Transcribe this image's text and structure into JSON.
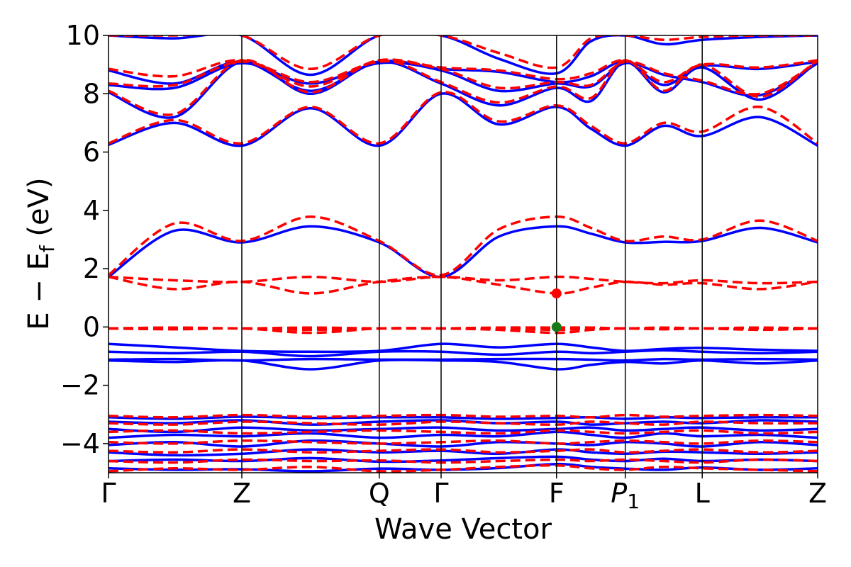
{
  "chart_data": {
    "type": "line",
    "title": "",
    "xlabel": "Wave Vector",
    "ylabel": "E − E_f (eV)",
    "ylabel_main": "E − E",
    "ylabel_sub": "f",
    "ylabel_unit": " (eV)",
    "ylim": [
      -5,
      10
    ],
    "xlim": [
      0,
      5.16
    ],
    "grid": false,
    "legend": "none",
    "yticks": [
      {
        "value": -4,
        "label": "−4"
      },
      {
        "value": -2,
        "label": "−2"
      },
      {
        "value": 0,
        "label": "0"
      },
      {
        "value": 2,
        "label": "2"
      },
      {
        "value": 4,
        "label": "4"
      },
      {
        "value": 6,
        "label": "6"
      },
      {
        "value": 8,
        "label": "8"
      },
      {
        "value": 10,
        "label": "10"
      }
    ],
    "kpoints": [
      {
        "label": "Γ",
        "sub": "",
        "x": 0
      },
      {
        "label": "Z",
        "sub": "",
        "x": 0.97
      },
      {
        "label": "Q",
        "sub": "",
        "x": 1.97
      },
      {
        "label": "Γ",
        "sub": "",
        "x": 2.42
      },
      {
        "label": "F",
        "sub": "",
        "x": 3.26
      },
      {
        "label": "P",
        "sub": "1",
        "x": 3.76
      },
      {
        "label": "L",
        "sub": "",
        "x": 4.32
      },
      {
        "label": "Z",
        "sub": "",
        "x": 5.16
      }
    ],
    "colors": {
      "series1": "#0000ff",
      "series2": "#ff0000",
      "vline": "#000000",
      "green_marker": "#1a7a1a"
    },
    "band_x": [
      0,
      0.48,
      0.97,
      1.47,
      1.97,
      2.42,
      2.84,
      3.26,
      3.51,
      3.76,
      4.04,
      4.32,
      4.74,
      5.16
    ],
    "series": [
      {
        "style": "solid",
        "color": "#0000ff",
        "bands": [
          [
            -4.85,
            -4.9,
            -4.88,
            -4.95,
            -4.86,
            -4.9,
            -4.84,
            -4.7,
            -4.8,
            -4.86,
            -4.9,
            -4.82,
            -4.9,
            -4.85
          ],
          [
            -4.6,
            -4.55,
            -4.6,
            -4.5,
            -4.62,
            -4.58,
            -4.5,
            -4.45,
            -4.55,
            -4.6,
            -4.52,
            -4.6,
            -4.55,
            -4.6
          ],
          [
            -4.3,
            -4.4,
            -4.35,
            -4.2,
            -4.3,
            -4.25,
            -4.35,
            -4.2,
            -4.3,
            -4.35,
            -4.28,
            -4.3,
            -4.35,
            -4.3
          ],
          [
            -4.05,
            -3.95,
            -4.1,
            -3.9,
            -4.0,
            -4.1,
            -3.95,
            -4.0,
            -4.05,
            -3.95,
            -4.0,
            -4.1,
            -3.95,
            -4.05
          ],
          [
            -3.8,
            -3.7,
            -3.75,
            -3.65,
            -3.8,
            -3.7,
            -3.75,
            -3.6,
            -3.7,
            -3.8,
            -3.65,
            -3.75,
            -3.7,
            -3.8
          ],
          [
            -3.5,
            -3.6,
            -3.45,
            -3.55,
            -3.5,
            -3.45,
            -3.55,
            -3.5,
            -3.45,
            -3.55,
            -3.5,
            -3.45,
            -3.55,
            -3.5
          ],
          [
            -3.25,
            -3.3,
            -3.2,
            -3.35,
            -3.25,
            -3.2,
            -3.3,
            -3.25,
            -3.35,
            -3.3,
            -3.25,
            -3.3,
            -3.2,
            -3.25
          ],
          [
            -3.1,
            -3.15,
            -3.08,
            -3.12,
            -3.1,
            -3.1,
            -3.15,
            -3.12,
            -3.1,
            -3.15,
            -3.1,
            -3.12,
            -3.1,
            -3.1
          ],
          [
            -1.15,
            -1.2,
            -1.15,
            -1.45,
            -1.15,
            -1.15,
            -1.2,
            -1.45,
            -1.3,
            -1.2,
            -1.25,
            -1.15,
            -1.25,
            -1.15
          ],
          [
            -1.12,
            -1.1,
            -1.15,
            -1.1,
            -1.12,
            -1.12,
            -1.1,
            -1.1,
            -1.12,
            -1.15,
            -1.1,
            -1.12,
            -1.1,
            -1.12
          ],
          [
            -0.85,
            -0.9,
            -0.85,
            -1.0,
            -0.85,
            -0.85,
            -0.95,
            -0.85,
            -0.9,
            -0.85,
            -0.8,
            -0.85,
            -0.9,
            -0.85
          ],
          [
            -0.58,
            -0.7,
            -0.82,
            -0.85,
            -0.82,
            -0.58,
            -0.7,
            -0.58,
            -0.7,
            -0.82,
            -0.75,
            -0.72,
            -0.78,
            -0.82
          ],
          [
            1.72,
            3.3,
            2.9,
            3.45,
            2.9,
            1.72,
            3.1,
            3.45,
            3.2,
            2.9,
            2.92,
            2.95,
            3.4,
            2.9
          ],
          [
            6.25,
            7.0,
            6.22,
            7.5,
            6.22,
            8.0,
            6.95,
            7.55,
            6.8,
            6.22,
            6.9,
            6.55,
            7.2,
            6.22
          ],
          [
            8.05,
            7.2,
            9.1,
            8.0,
            9.1,
            8.35,
            7.6,
            8.2,
            7.75,
            9.1,
            8.05,
            8.9,
            7.8,
            9.1
          ],
          [
            8.3,
            8.2,
            9.05,
            8.35,
            9.05,
            8.8,
            8.1,
            8.35,
            8.25,
            9.05,
            8.65,
            8.4,
            7.95,
            9.05
          ],
          [
            8.8,
            8.35,
            9.1,
            8.1,
            9.1,
            8.85,
            8.75,
            8.4,
            8.6,
            9.1,
            8.3,
            8.95,
            8.85,
            9.1
          ],
          [
            10.0,
            9.9,
            10.0,
            8.65,
            10.0,
            10.0,
            9.2,
            8.7,
            9.8,
            10.0,
            9.7,
            9.85,
            9.95,
            10.0
          ]
        ]
      },
      {
        "style": "dashed",
        "color": "#ff0000",
        "bands": [
          [
            -4.95,
            -4.85,
            -4.9,
            -4.8,
            -4.95,
            -4.9,
            -4.8,
            -4.75,
            -4.85,
            -4.9,
            -4.8,
            -4.85,
            -4.9,
            -4.95
          ],
          [
            -4.6,
            -4.65,
            -4.55,
            -4.6,
            -4.58,
            -4.65,
            -4.6,
            -4.55,
            -4.6,
            -4.55,
            -4.6,
            -4.65,
            -4.55,
            -4.6
          ],
          [
            -4.25,
            -4.3,
            -4.2,
            -4.3,
            -4.25,
            -4.2,
            -4.3,
            -4.25,
            -4.2,
            -4.3,
            -4.25,
            -4.2,
            -4.3,
            -4.25
          ],
          [
            -3.95,
            -4.0,
            -3.9,
            -3.95,
            -4.0,
            -3.95,
            -3.9,
            -4.0,
            -3.95,
            -3.9,
            -3.95,
            -4.0,
            -3.9,
            -3.95
          ],
          [
            -3.6,
            -3.55,
            -3.65,
            -3.6,
            -3.55,
            -3.6,
            -3.65,
            -3.55,
            -3.6,
            -3.65,
            -3.6,
            -3.55,
            -3.65,
            -3.6
          ],
          [
            -3.3,
            -3.35,
            -3.25,
            -3.3,
            -3.35,
            -3.25,
            -3.3,
            -3.35,
            -3.25,
            -3.3,
            -3.35,
            -3.25,
            -3.3,
            -3.3
          ],
          [
            -3.05,
            -3.1,
            -3.02,
            -3.08,
            -3.05,
            -3.02,
            -3.08,
            -3.05,
            -3.1,
            -3.02,
            -3.08,
            -3.05,
            -3.02,
            -3.05
          ],
          [
            -0.05,
            -0.08,
            -0.05,
            -0.2,
            -0.05,
            -0.05,
            -0.1,
            -0.2,
            -0.1,
            -0.05,
            -0.08,
            -0.05,
            -0.1,
            -0.05
          ],
          [
            -0.05,
            -0.05,
            -0.05,
            -0.1,
            -0.05,
            -0.05,
            -0.05,
            -0.1,
            -0.05,
            -0.05,
            -0.05,
            -0.05,
            -0.05,
            -0.05
          ],
          [
            -0.05,
            -0.02,
            -0.05,
            -0.02,
            -0.05,
            -0.05,
            -0.02,
            -0.02,
            -0.02,
            -0.05,
            -0.02,
            -0.05,
            -0.02,
            -0.05
          ],
          [
            1.72,
            1.3,
            1.55,
            1.15,
            1.55,
            1.72,
            1.45,
            1.15,
            1.35,
            1.55,
            1.45,
            1.5,
            1.3,
            1.55
          ],
          [
            1.72,
            1.6,
            1.55,
            1.72,
            1.55,
            1.72,
            1.6,
            1.72,
            1.65,
            1.55,
            1.5,
            1.6,
            1.5,
            1.55
          ],
          [
            1.78,
            3.55,
            2.95,
            3.78,
            2.95,
            1.78,
            3.35,
            3.78,
            3.4,
            2.95,
            3.1,
            3.0,
            3.65,
            2.95
          ],
          [
            6.3,
            7.1,
            6.3,
            7.55,
            6.3,
            8.05,
            7.05,
            7.6,
            6.9,
            6.3,
            7.0,
            6.7,
            7.55,
            6.3
          ],
          [
            8.1,
            7.3,
            9.15,
            8.05,
            9.15,
            8.4,
            7.7,
            8.25,
            7.85,
            9.15,
            8.1,
            9.0,
            7.9,
            9.15
          ],
          [
            8.35,
            8.3,
            9.1,
            8.4,
            9.1,
            8.85,
            8.2,
            8.4,
            8.3,
            9.1,
            8.7,
            8.45,
            8.0,
            9.1
          ],
          [
            8.85,
            8.6,
            9.15,
            8.25,
            9.15,
            8.9,
            8.8,
            8.5,
            8.7,
            9.15,
            8.4,
            9.0,
            8.9,
            9.15
          ],
          [
            10.0,
            10.0,
            10.0,
            8.85,
            10.0,
            10.0,
            9.4,
            8.9,
            9.9,
            10.0,
            9.85,
            9.95,
            10.0,
            10.0
          ]
        ]
      }
    ],
    "markers": [
      {
        "x": 3.26,
        "y": 1.15,
        "color": "#ff0000"
      },
      {
        "x": 3.26,
        "y": 0.0,
        "color": "#1a7a1a"
      }
    ]
  }
}
